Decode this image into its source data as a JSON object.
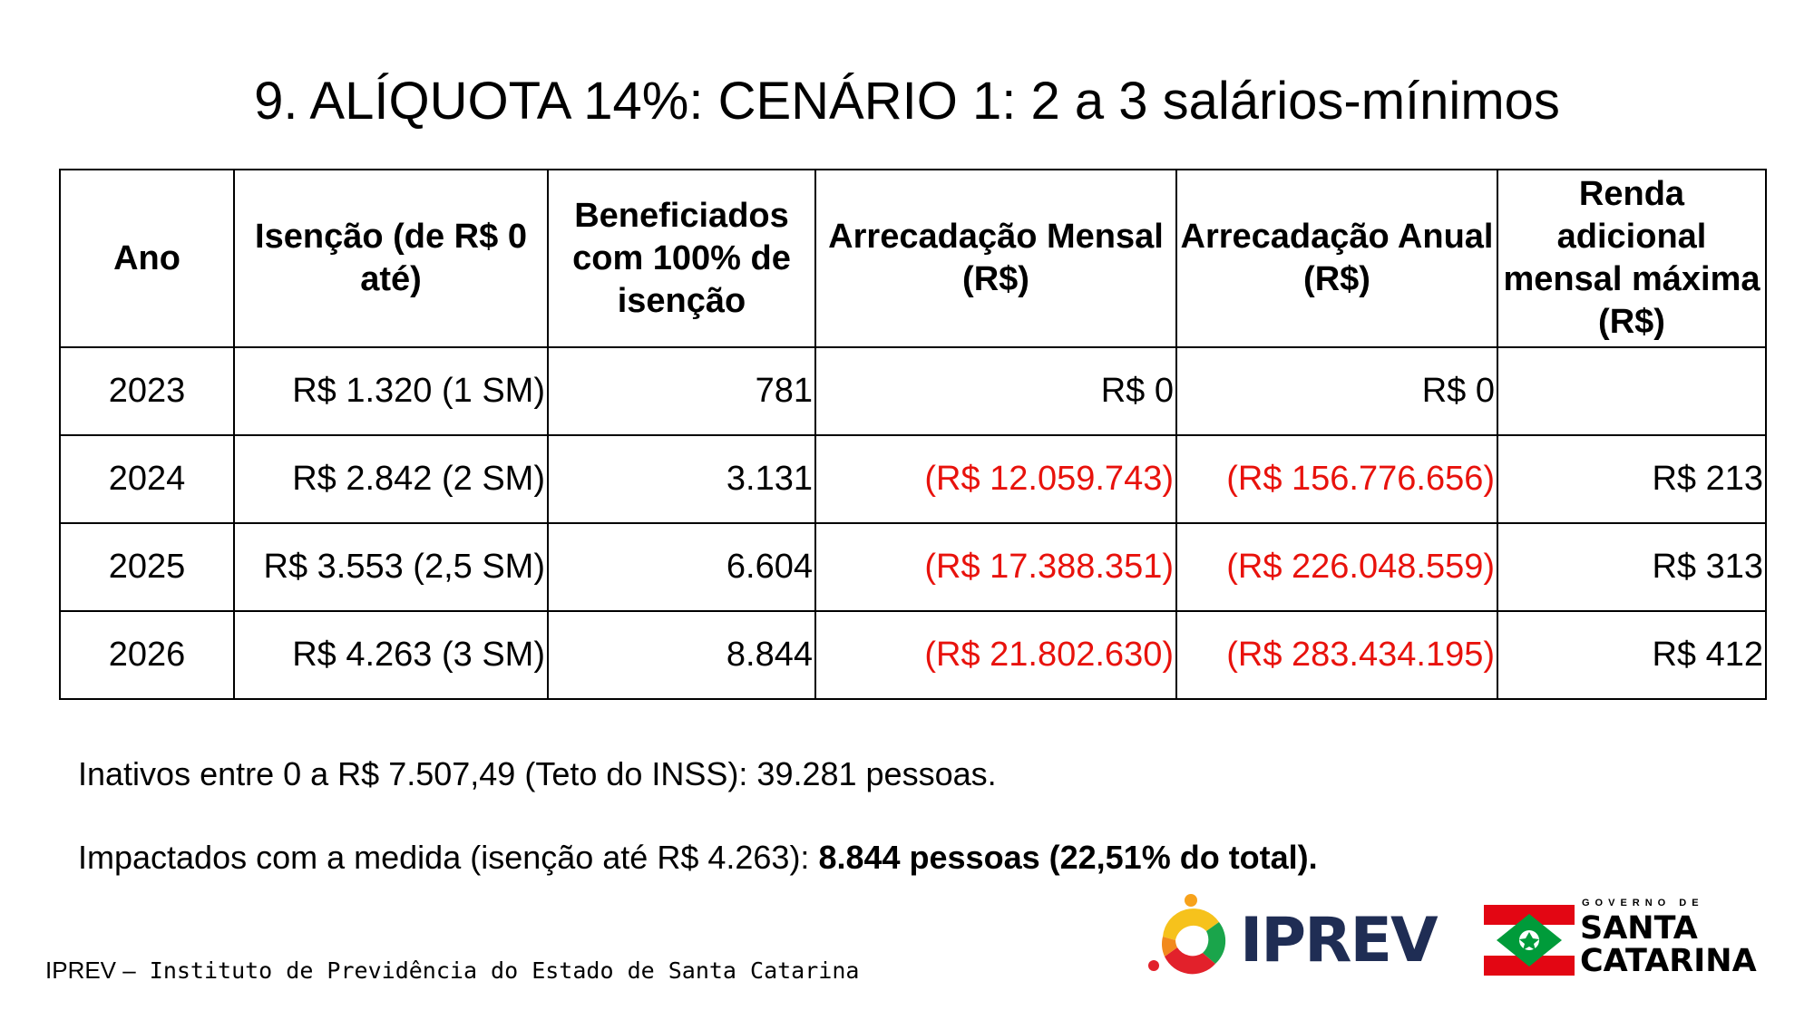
{
  "title": "9. ALÍQUOTA 14%: CENÁRIO 1: 2 a 3 salários-mínimos",
  "table": {
    "headers": [
      "Ano",
      "Isenção (de R$ 0 até)",
      "Beneficiados com 100% de isenção",
      "Arrecadação Mensal (R$)",
      "Arrecadação Anual (R$)",
      "Renda adicional mensal máxima (R$)"
    ],
    "rows": [
      {
        "ano": "2023",
        "isencao": "R$ 1.320 (1 SM)",
        "beneficiados": "781",
        "mensal": "R$ 0",
        "anual": "R$ 0",
        "renda": ""
      },
      {
        "ano": "2024",
        "isencao": "R$ 2.842 (2 SM)",
        "beneficiados": "3.131",
        "mensal": "(R$ 12.059.743)",
        "anual": "(R$ 156.776.656)",
        "renda": "R$ 213"
      },
      {
        "ano": "2025",
        "isencao": "R$ 3.553 (2,5 SM)",
        "beneficiados": "6.604",
        "mensal": "(R$ 17.388.351)",
        "anual": "(R$ 226.048.559)",
        "renda": "R$ 313"
      },
      {
        "ano": "2026",
        "isencao": "R$ 4.263 (3 SM)",
        "beneficiados": "8.844",
        "mensal": "(R$ 21.802.630)",
        "anual": "(R$ 283.434.195)",
        "renda": "R$ 412"
      }
    ]
  },
  "notes": {
    "inativos": "Inativos entre 0 a R$ 7.507,49 (Teto do INSS): 39.281 pessoas.",
    "impactados_prefix": "Impactados com a medida (isenção até R$ 4.263): ",
    "impactados_bold": "8.844 pessoas (22,51% do total)."
  },
  "footer": {
    "org": "IPREV –",
    "name": " Instituto de Previdência do Estado de Santa Catarina"
  },
  "logos": {
    "iprev": "IPREV",
    "sc_small": "GOVERNO DE",
    "sc_line1": "SANTA",
    "sc_line2": "CATARINA"
  },
  "colors": {
    "negative": "#e8120c",
    "iprev_navy": "#1f2d54",
    "sc_red": "#e30613",
    "sc_green": "#009b3a"
  }
}
